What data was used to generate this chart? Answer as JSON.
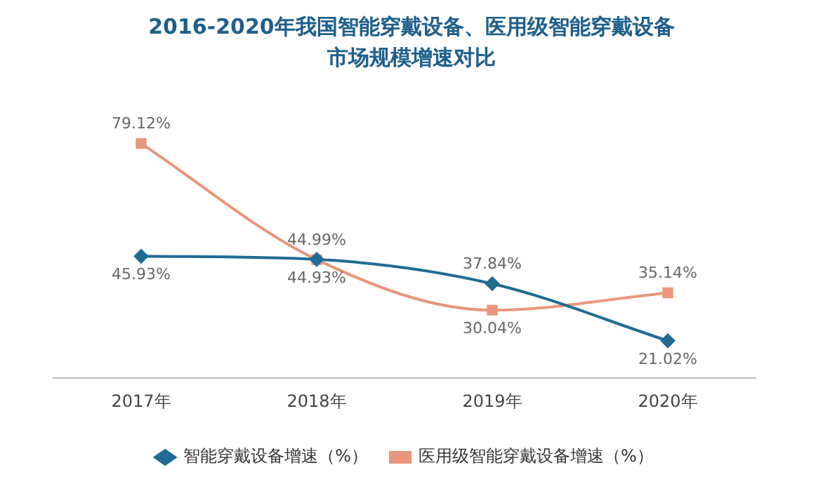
{
  "chart_data": {
    "type": "line",
    "title": "2016-2020年我国智能穿戴设备、医用级智能穿戴设备市场规模增速对比",
    "categories": [
      "2017年",
      "2018年",
      "2019年",
      "2020年"
    ],
    "series": [
      {
        "name": "智能穿戴设备增速（%）",
        "color": "#1f6b93",
        "values": [
          45.93,
          44.99,
          37.84,
          21.02
        ],
        "value_labels": [
          "45.93%",
          "44.99%",
          "37.84%",
          "21.02%"
        ],
        "marker": "diamond"
      },
      {
        "name": "医用级智能穿戴设备增速（%）",
        "color": "#e9967a",
        "values": [
          79.12,
          44.93,
          30.04,
          35.14
        ],
        "value_labels": [
          "79.12%",
          "44.93%",
          "30.04%",
          "35.14%"
        ],
        "marker": "square"
      }
    ],
    "grid": false,
    "legend": "bottom",
    "tick_labels": "x"
  }
}
